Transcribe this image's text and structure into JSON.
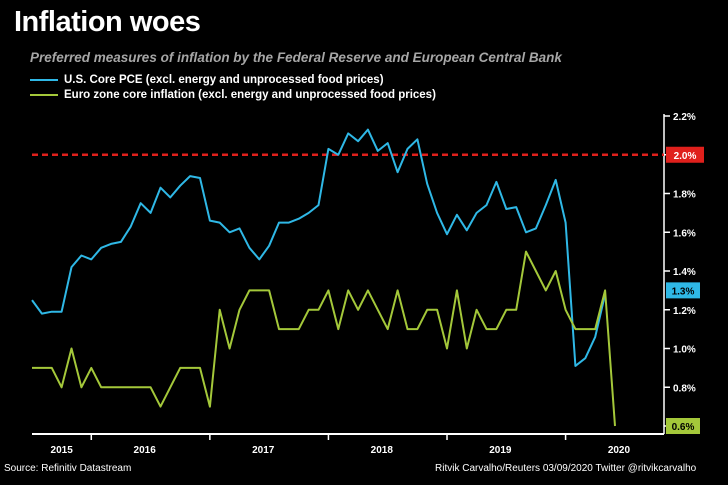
{
  "title": "Inflation woes",
  "subtitle": "Preferred measures of inflation by the Federal Reserve and European Central Bank",
  "source": "Source: Refinitiv Datastream",
  "credit": "Ritvik Carvalho/Reuters 03/09/2020 Twitter @ritvikcarvalho",
  "colors": {
    "us": "#2fb8e6",
    "ez": "#a4c83a",
    "target": "#e0201c",
    "background": "#000000"
  },
  "chart_data": {
    "type": "line",
    "title": "Inflation woes",
    "ylabel": "",
    "xlabel": "",
    "ylim": [
      0.6,
      2.2
    ],
    "xlim": [
      2015.0,
      2020.33
    ],
    "y_ticks": [
      "2.2%",
      "2.0%",
      "1.8%",
      "1.6%",
      "1.4%",
      "1.2%",
      "1.0%",
      "0.8%",
      "0.6%"
    ],
    "x_ticks": [
      {
        "label": "2015",
        "at": 2015.25
      },
      {
        "label": "2016",
        "at": 2015.95
      },
      {
        "label": "2017",
        "at": 2016.95
      },
      {
        "label": "2018",
        "at": 2017.95
      },
      {
        "label": "2019",
        "at": 2018.95
      },
      {
        "label": "2020",
        "at": 2019.95
      }
    ],
    "x_dividers": [
      2015.5,
      2016.5,
      2017.5,
      2018.5,
      2019.5
    ],
    "reference_line": {
      "value": 2.0,
      "label": "2.0%"
    },
    "end_labels": [
      "1.3%",
      "0.6%"
    ],
    "series": [
      {
        "name": "U.S. Core PCE (excl. energy and unprocessed food prices)",
        "start": 2015.0,
        "step": 0.08333,
        "values": [
          1.25,
          1.18,
          1.19,
          1.19,
          1.42,
          1.48,
          1.46,
          1.52,
          1.54,
          1.55,
          1.63,
          1.75,
          1.7,
          1.83,
          1.78,
          1.84,
          1.89,
          1.88,
          1.66,
          1.65,
          1.6,
          1.62,
          1.52,
          1.46,
          1.53,
          1.65,
          1.65,
          1.67,
          1.7,
          1.74,
          2.03,
          2.0,
          2.11,
          2.07,
          2.13,
          2.02,
          2.06,
          1.91,
          2.03,
          2.08,
          1.85,
          1.7,
          1.59,
          1.69,
          1.61,
          1.7,
          1.74,
          1.86,
          1.72,
          1.73,
          1.6,
          1.62,
          1.74,
          1.87,
          1.65,
          0.91,
          0.95,
          1.06,
          1.28
        ]
      },
      {
        "name": "Euro zone core inflation (excl. energy and unprocessed food prices)",
        "start": 2015.0,
        "step": 0.08333,
        "values": [
          0.9,
          0.9,
          0.9,
          0.8,
          1.0,
          0.8,
          0.9,
          0.8,
          0.8,
          0.8,
          0.8,
          0.8,
          0.8,
          0.7,
          0.8,
          0.9,
          0.9,
          0.9,
          0.7,
          1.2,
          1.0,
          1.2,
          1.3,
          1.3,
          1.3,
          1.1,
          1.1,
          1.1,
          1.2,
          1.2,
          1.3,
          1.1,
          1.3,
          1.2,
          1.3,
          1.2,
          1.1,
          1.3,
          1.1,
          1.1,
          1.2,
          1.2,
          1.0,
          1.3,
          1.0,
          1.2,
          1.1,
          1.1,
          1.2,
          1.2,
          1.5,
          1.4,
          1.3,
          1.4,
          1.2,
          1.1,
          1.1,
          1.1,
          1.3,
          0.6
        ]
      }
    ]
  }
}
